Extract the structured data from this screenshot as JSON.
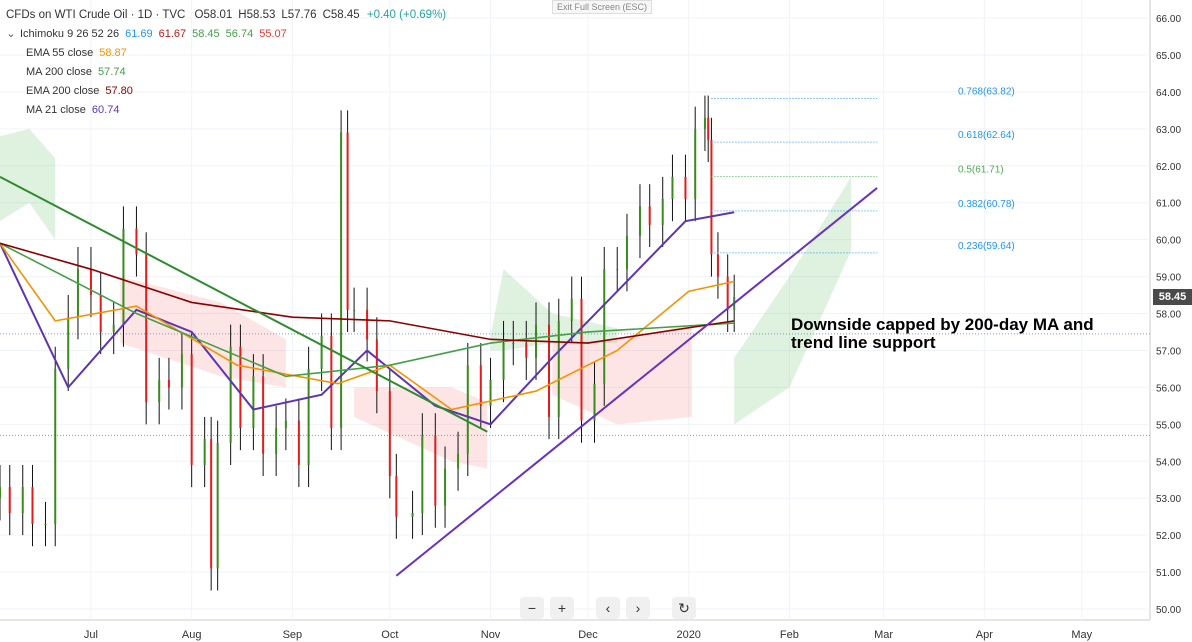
{
  "header": {
    "title": "CFDs on WTI Crude Oil · 1D · TVC",
    "ohlc": [
      {
        "k": "O",
        "v": "58.01"
      },
      {
        "k": "H",
        "v": "58.53"
      },
      {
        "k": "L",
        "v": "57.76"
      },
      {
        "k": "C",
        "v": "58.45"
      }
    ],
    "change": "+0.40 (+0.69%)",
    "exit_fullscreen": "Exit Full Screen (ESC)"
  },
  "legend": [
    {
      "name": "Ichimoku 9 26 52 26",
      "values": [
        {
          "v": "61.69",
          "color": "#2196f3"
        },
        {
          "v": "61.67",
          "color": "#b71c1c"
        },
        {
          "v": "58.45",
          "color": "#43a047"
        },
        {
          "v": "56.74",
          "color": "#43a047"
        },
        {
          "v": "55.07",
          "color": "#e53935"
        }
      ]
    },
    {
      "name": "EMA 55 close",
      "values": [
        {
          "v": "58.87",
          "color": "#f59300"
        }
      ]
    },
    {
      "name": "MA 200 close",
      "values": [
        {
          "v": "57.74",
          "color": "#43a047"
        }
      ]
    },
    {
      "name": "EMA 200 close",
      "values": [
        {
          "v": "57.80",
          "color": "#8b0000"
        }
      ]
    },
    {
      "name": "MA 21 close",
      "values": [
        {
          "v": "60.74",
          "color": "#5e35b1"
        }
      ]
    }
  ],
  "annotation": {
    "line1": "Downside capped by 200-day MA and",
    "line2": "trend line support"
  },
  "current_price": "58.45",
  "controls": {
    "zoom_out": "−",
    "zoom_in": "+",
    "left": "‹",
    "right": "›",
    "reset": "↻"
  },
  "chart_data": {
    "type": "candlestick",
    "title": "CFDs on WTI Crude Oil · 1D · TVC",
    "ylim": [
      50,
      66
    ],
    "y_ticks": [
      "50.00",
      "51.00",
      "52.00",
      "53.00",
      "54.00",
      "55.00",
      "56.00",
      "57.00",
      "58.00",
      "59.00",
      "60.00",
      "61.00",
      "62.00",
      "63.00",
      "64.00",
      "65.00",
      "66.00"
    ],
    "x_labels": [
      {
        "label": "Jul",
        "date": "2019-07-01"
      },
      {
        "label": "Aug",
        "date": "2019-08-01"
      },
      {
        "label": "Sep",
        "date": "2019-09-01"
      },
      {
        "label": "Oct",
        "date": "2019-10-01"
      },
      {
        "label": "Nov",
        "date": "2019-11-01"
      },
      {
        "label": "Dec",
        "date": "2019-12-01"
      },
      {
        "label": "2020",
        "date": "2020-01-01"
      },
      {
        "label": "Feb",
        "date": "2020-02-01"
      },
      {
        "label": "Mar",
        "date": "2020-03-01"
      },
      {
        "label": "Apr",
        "date": "2020-04-01"
      },
      {
        "label": "May",
        "date": "2020-05-01"
      }
    ],
    "x_range": [
      "2019-06-03",
      "2020-05-22"
    ],
    "closes": [
      {
        "date": "2019-06-03",
        "c": 53.3
      },
      {
        "date": "2019-06-06",
        "c": 52.6
      },
      {
        "date": "2019-06-10",
        "c": 53.3
      },
      {
        "date": "2019-06-13",
        "c": 52.3
      },
      {
        "date": "2019-06-17",
        "c": 52.3
      },
      {
        "date": "2019-06-20",
        "c": 56.5
      },
      {
        "date": "2019-06-24",
        "c": 57.9
      },
      {
        "date": "2019-06-27",
        "c": 59.2
      },
      {
        "date": "2019-07-01",
        "c": 58.5
      },
      {
        "date": "2019-07-04",
        "c": 57.5
      },
      {
        "date": "2019-07-08",
        "c": 57.7
      },
      {
        "date": "2019-07-11",
        "c": 60.3
      },
      {
        "date": "2019-07-15",
        "c": 59.6
      },
      {
        "date": "2019-07-18",
        "c": 55.6
      },
      {
        "date": "2019-07-22",
        "c": 56.2
      },
      {
        "date": "2019-07-25",
        "c": 56.0
      },
      {
        "date": "2019-07-29",
        "c": 56.9
      },
      {
        "date": "2019-08-01",
        "c": 53.9
      },
      {
        "date": "2019-08-05",
        "c": 54.6
      },
      {
        "date": "2019-08-07",
        "c": 51.1
      },
      {
        "date": "2019-08-09",
        "c": 54.5
      },
      {
        "date": "2019-08-13",
        "c": 57.1
      },
      {
        "date": "2019-08-16",
        "c": 54.9
      },
      {
        "date": "2019-08-20",
        "c": 56.3
      },
      {
        "date": "2019-08-23",
        "c": 54.2
      },
      {
        "date": "2019-08-27",
        "c": 54.9
      },
      {
        "date": "2019-08-30",
        "c": 55.1
      },
      {
        "date": "2019-09-03",
        "c": 53.9
      },
      {
        "date": "2019-09-06",
        "c": 56.5
      },
      {
        "date": "2019-09-10",
        "c": 57.4
      },
      {
        "date": "2019-09-13",
        "c": 54.9
      },
      {
        "date": "2019-09-16",
        "c": 62.9
      },
      {
        "date": "2019-09-18",
        "c": 58.1
      },
      {
        "date": "2019-09-20",
        "c": 58.1
      },
      {
        "date": "2019-09-24",
        "c": 57.3
      },
      {
        "date": "2019-09-27",
        "c": 55.9
      },
      {
        "date": "2019-10-01",
        "c": 53.6
      },
      {
        "date": "2019-10-03",
        "c": 52.5
      },
      {
        "date": "2019-10-08",
        "c": 52.6
      },
      {
        "date": "2019-10-11",
        "c": 54.7
      },
      {
        "date": "2019-10-15",
        "c": 52.8
      },
      {
        "date": "2019-10-18",
        "c": 53.8
      },
      {
        "date": "2019-10-22",
        "c": 54.2
      },
      {
        "date": "2019-10-25",
        "c": 56.6
      },
      {
        "date": "2019-10-29",
        "c": 55.5
      },
      {
        "date": "2019-11-01",
        "c": 56.2
      },
      {
        "date": "2019-11-05",
        "c": 57.2
      },
      {
        "date": "2019-11-08",
        "c": 57.2
      },
      {
        "date": "2019-11-12",
        "c": 56.8
      },
      {
        "date": "2019-11-15",
        "c": 57.7
      },
      {
        "date": "2019-11-19",
        "c": 55.2
      },
      {
        "date": "2019-11-22",
        "c": 57.8
      },
      {
        "date": "2019-11-26",
        "c": 58.4
      },
      {
        "date": "2019-11-29",
        "c": 55.1
      },
      {
        "date": "2019-12-03",
        "c": 56.1
      },
      {
        "date": "2019-12-06",
        "c": 59.2
      },
      {
        "date": "2019-12-10",
        "c": 59.2
      },
      {
        "date": "2019-12-13",
        "c": 60.1
      },
      {
        "date": "2019-12-17",
        "c": 60.9
      },
      {
        "date": "2019-12-20",
        "c": 60.4
      },
      {
        "date": "2019-12-24",
        "c": 61.1
      },
      {
        "date": "2019-12-27",
        "c": 61.7
      },
      {
        "date": "2019-12-31",
        "c": 61.1
      },
      {
        "date": "2020-01-03",
        "c": 63.0
      },
      {
        "date": "2020-01-06",
        "c": 63.3
      },
      {
        "date": "2020-01-07",
        "c": 62.7
      },
      {
        "date": "2020-01-08",
        "c": 59.6
      },
      {
        "date": "2020-01-10",
        "c": 59.0
      },
      {
        "date": "2020-01-13",
        "c": 58.1
      },
      {
        "date": "2020-01-15",
        "c": 58.45
      }
    ],
    "fib_levels": [
      {
        "label": "0.768(63.82)",
        "value": 63.82,
        "color": "#2196f3"
      },
      {
        "label": "0.618(62.64)",
        "value": 62.64,
        "color": "#2196f3"
      },
      {
        "label": "0.5(61.71)",
        "value": 61.71,
        "color": "#4caf50"
      },
      {
        "label": "0.382(60.78)",
        "value": 60.78,
        "color": "#2196f3"
      },
      {
        "label": "0.236(59.64)",
        "value": 59.64,
        "color": "#2196f3"
      }
    ],
    "trend_lines": [
      {
        "name": "descending",
        "color": "#2e8b2e",
        "from": {
          "date": "2019-06-03",
          "v": 61.7
        },
        "to": {
          "date": "2019-10-31",
          "v": 54.8
        }
      },
      {
        "name": "ascending",
        "color": "#6a30c0",
        "from": {
          "date": "2019-10-03",
          "v": 50.9
        },
        "to": {
          "date": "2020-02-28",
          "v": 61.4
        }
      }
    ],
    "series": [
      {
        "name": "MA 21 close",
        "color": "#5e35b1",
        "points": [
          [
            "2019-06-03",
            59.9
          ],
          [
            "2019-06-24",
            56.0
          ],
          [
            "2019-07-15",
            58.1
          ],
          [
            "2019-08-01",
            57.5
          ],
          [
            "2019-08-20",
            55.4
          ],
          [
            "2019-09-10",
            55.8
          ],
          [
            "2019-09-24",
            57.0
          ],
          [
            "2019-10-15",
            55.5
          ],
          [
            "2019-11-01",
            55.0
          ],
          [
            "2019-11-20",
            56.8
          ],
          [
            "2019-12-10",
            58.6
          ],
          [
            "2019-12-31",
            60.5
          ],
          [
            "2020-01-15",
            60.74
          ]
        ]
      },
      {
        "name": "EMA 55 close",
        "color": "#f59300",
        "points": [
          [
            "2019-06-03",
            59.9
          ],
          [
            "2019-06-20",
            57.8
          ],
          [
            "2019-07-15",
            58.2
          ],
          [
            "2019-08-15",
            56.6
          ],
          [
            "2019-09-15",
            56.1
          ],
          [
            "2019-10-01",
            56.6
          ],
          [
            "2019-10-20",
            55.4
          ],
          [
            "2019-11-15",
            55.9
          ],
          [
            "2019-12-10",
            57.0
          ],
          [
            "2020-01-01",
            58.6
          ],
          [
            "2020-01-15",
            58.87
          ]
        ]
      },
      {
        "name": "MA 200 close",
        "color": "#43a047",
        "points": [
          [
            "2019-06-03",
            59.9
          ],
          [
            "2019-07-15",
            58.0
          ],
          [
            "2019-08-30",
            56.3
          ],
          [
            "2019-10-01",
            56.6
          ],
          [
            "2019-11-01",
            57.2
          ],
          [
            "2019-12-01",
            57.5
          ],
          [
            "2020-01-15",
            57.74
          ]
        ]
      },
      {
        "name": "EMA 200 close",
        "color": "#8b0000",
        "points": [
          [
            "2019-06-03",
            59.9
          ],
          [
            "2019-07-01",
            59.2
          ],
          [
            "2019-08-01",
            58.3
          ],
          [
            "2019-09-01",
            57.9
          ],
          [
            "2019-10-01",
            57.8
          ],
          [
            "2019-11-01",
            57.3
          ],
          [
            "2019-12-01",
            57.2
          ],
          [
            "2020-01-15",
            57.8
          ]
        ]
      }
    ]
  }
}
